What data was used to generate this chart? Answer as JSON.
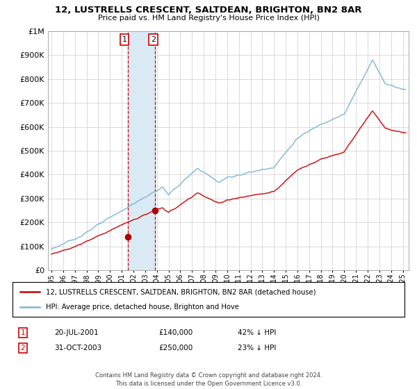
{
  "title": "12, LUSTRELLS CRESCENT, SALTDEAN, BRIGHTON, BN2 8AR",
  "subtitle": "Price paid vs. HM Land Registry's House Price Index (HPI)",
  "legend_line1": "12, LUSTRELLS CRESCENT, SALTDEAN, BRIGHTON, BN2 8AR (detached house)",
  "legend_line2": "HPI: Average price, detached house, Brighton and Hove",
  "transaction1_date": "20-JUL-2001",
  "transaction1_price": "£140,000",
  "transaction1_hpi": "42% ↓ HPI",
  "transaction2_date": "31-OCT-2003",
  "transaction2_price": "£250,000",
  "transaction2_hpi": "23% ↓ HPI",
  "footer": "Contains HM Land Registry data © Crown copyright and database right 2024.\nThis data is licensed under the Open Government Licence v3.0.",
  "hpi_color": "#7ab4d8",
  "price_color": "#cc0000",
  "marker_color": "#aa0000",
  "annotation_box_color": "#cc0000",
  "shading_color": "#daeaf5",
  "ylim": [
    0,
    1000000
  ],
  "xlim_start": 1994.7,
  "xlim_end": 2025.5,
  "transaction1_x": 2001.54,
  "transaction1_y": 140000,
  "transaction2_x": 2003.83,
  "transaction2_y": 250000
}
